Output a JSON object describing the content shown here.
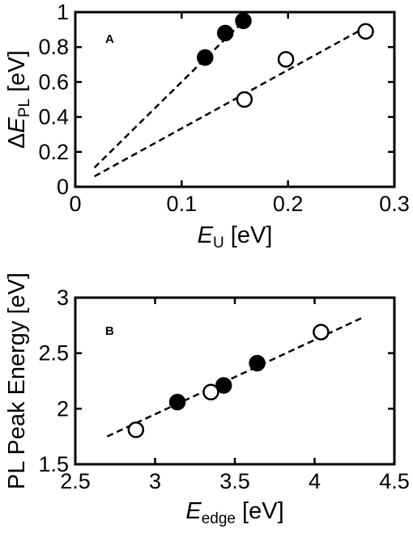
{
  "chart_data": [
    {
      "type": "scatter",
      "panel_label": "A",
      "xlabel": {
        "main": "E",
        "sub": "U",
        "unit": " [eV]"
      },
      "ylabel": {
        "prefix": "Δ",
        "main": "E",
        "sub": "PL",
        "unit": " [eV]"
      },
      "xlim": [
        0,
        0.3
      ],
      "ylim": [
        0,
        1
      ],
      "xticks": [
        0,
        0.1,
        0.2,
        0.3
      ],
      "xtick_labels": [
        "0",
        "0.1",
        "0.2",
        "0.3"
      ],
      "yticks": [
        0,
        0.2,
        0.4,
        0.6,
        0.8,
        1
      ],
      "ytick_labels": [
        "0",
        "0.2",
        "0.4",
        "0.6",
        "0.8",
        "1"
      ],
      "grid": false,
      "series": [
        {
          "marker": "filled-circle",
          "x": [
            0.122,
            0.141,
            0.158
          ],
          "y": [
            0.74,
            0.88,
            0.95
          ]
        },
        {
          "marker": "open-circle",
          "x": [
            0.159,
            0.198,
            0.273
          ],
          "y": [
            0.5,
            0.73,
            0.89
          ]
        }
      ],
      "fit_lines": [
        {
          "style": "dashed",
          "x": [
            0.018,
            0.16
          ],
          "y": [
            0.11,
            0.96
          ]
        },
        {
          "style": "dashed",
          "x": [
            0.018,
            0.275
          ],
          "y": [
            0.06,
            0.92
          ]
        }
      ]
    },
    {
      "type": "scatter",
      "panel_label": "B",
      "xlabel": {
        "main": "E",
        "sub": "edge",
        "unit": " [eV]"
      },
      "ylabel": {
        "text": "PL Peak Energy [eV]"
      },
      "xlim": [
        2.5,
        4.5
      ],
      "ylim": [
        1.5,
        3
      ],
      "xticks": [
        2.5,
        3,
        3.5,
        4,
        4.5
      ],
      "xtick_labels": [
        "2.5",
        "3",
        "3.5",
        "4",
        "4.5"
      ],
      "yticks": [
        1.5,
        2,
        2.5,
        3
      ],
      "ytick_labels": [
        "1.5",
        "2",
        "2.5",
        "3"
      ],
      "grid": false,
      "series": [
        {
          "marker": "filled-circle",
          "x": [
            3.14,
            3.43,
            3.64
          ],
          "y": [
            2.06,
            2.21,
            2.41
          ]
        },
        {
          "marker": "open-circle",
          "x": [
            2.88,
            3.35,
            4.04
          ],
          "y": [
            1.81,
            2.15,
            2.69
          ]
        }
      ],
      "fit_lines": [
        {
          "style": "dashed",
          "x": [
            2.7,
            4.3
          ],
          "y": [
            1.75,
            2.82
          ]
        }
      ]
    }
  ]
}
